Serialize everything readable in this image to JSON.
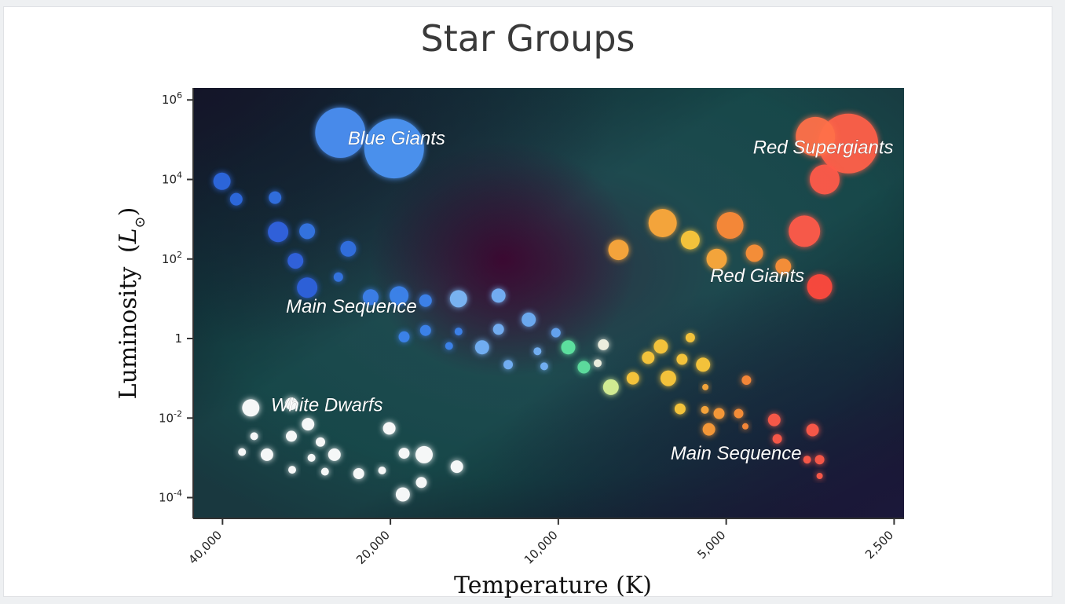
{
  "chart_data": {
    "type": "scatter",
    "title": "Star Groups",
    "xlabel": "Temperature (K)",
    "ylabel": "Luminosity",
    "ylabel_unit": "L",
    "x_scale": "log",
    "x_reversed": true,
    "y_scale": "log",
    "xlim": [
      45000,
      2400
    ],
    "ylim": [
      3e-05,
      2000000
    ],
    "x_ticks": [
      {
        "value": 40000,
        "label": "40,000"
      },
      {
        "value": 20000,
        "label": "20,000"
      },
      {
        "value": 10000,
        "label": "10,000"
      },
      {
        "value": 5000,
        "label": "5,000"
      },
      {
        "value": 2500,
        "label": "2,500"
      }
    ],
    "y_ticks": [
      {
        "value": 1000000,
        "base": "10",
        "exp": "6"
      },
      {
        "value": 10000,
        "base": "10",
        "exp": "4"
      },
      {
        "value": 100,
        "base": "10",
        "exp": "2"
      },
      {
        "value": 1,
        "base": "1",
        "exp": ""
      },
      {
        "value": 0.01,
        "base": "10",
        "exp": "-2"
      },
      {
        "value": 0.0001,
        "base": "10",
        "exp": "-4"
      }
    ],
    "grid": false,
    "annotations": [
      {
        "text": "Blue Giants",
        "x": 19500,
        "y": 100000
      },
      {
        "text": "Red Supergiants",
        "x": 3350,
        "y": 60000
      },
      {
        "text": "Red Giants",
        "x": 4400,
        "y": 35
      },
      {
        "text": "Main Sequence",
        "x": 23500,
        "y": 6
      },
      {
        "text": "White Dwarfs",
        "x": 26000,
        "y": 0.02
      },
      {
        "text": "Main Sequence",
        "x": 4800,
        "y": 0.0012
      }
    ],
    "points": [
      {
        "x": 19700,
        "y": 60000,
        "r": 38,
        "color": "#4d95f4"
      },
      {
        "x": 24600,
        "y": 150000,
        "r": 32,
        "color": "#4b8ff2"
      },
      {
        "x": 3020,
        "y": 80000,
        "r": 38,
        "color": "#ff6048"
      },
      {
        "x": 3460,
        "y": 120000,
        "r": 25,
        "color": "#ff7048"
      },
      {
        "x": 3330,
        "y": 10000,
        "r": 19,
        "color": "#ff5a48"
      },
      {
        "x": 40100,
        "y": 9000,
        "r": 11,
        "color": "#2f68e0"
      },
      {
        "x": 37800,
        "y": 3200,
        "r": 8,
        "color": "#2f6ae0"
      },
      {
        "x": 32200,
        "y": 3500,
        "r": 8,
        "color": "#3070e2"
      },
      {
        "x": 31800,
        "y": 480,
        "r": 13,
        "color": "#3064e0"
      },
      {
        "x": 28200,
        "y": 500,
        "r": 10,
        "color": "#3574e4"
      },
      {
        "x": 29600,
        "y": 90,
        "r": 10,
        "color": "#3064e0"
      },
      {
        "x": 28200,
        "y": 19,
        "r": 13,
        "color": "#2e62de"
      },
      {
        "x": 23800,
        "y": 180,
        "r": 10,
        "color": "#3270e2"
      },
      {
        "x": 24800,
        "y": 35,
        "r": 6,
        "color": "#3574e4"
      },
      {
        "x": 21700,
        "y": 11,
        "r": 10,
        "color": "#3d80ec"
      },
      {
        "x": 19300,
        "y": 12,
        "r": 12,
        "color": "#3d84ee"
      },
      {
        "x": 17300,
        "y": 9,
        "r": 8,
        "color": "#3d84ee"
      },
      {
        "x": 15100,
        "y": 10,
        "r": 11,
        "color": "#7cb8f8"
      },
      {
        "x": 12800,
        "y": 12,
        "r": 9,
        "color": "#74b2f8"
      },
      {
        "x": 11300,
        "y": 3,
        "r": 9,
        "color": "#6eaef6"
      },
      {
        "x": 10100,
        "y": 1.4,
        "r": 6,
        "color": "#66a6f4"
      },
      {
        "x": 18900,
        "y": 1.1,
        "r": 7,
        "color": "#3d84ee"
      },
      {
        "x": 17300,
        "y": 1.6,
        "r": 7,
        "color": "#3d84ee"
      },
      {
        "x": 15100,
        "y": 1.5,
        "r": 5,
        "color": "#3d84ee"
      },
      {
        "x": 15700,
        "y": 0.65,
        "r": 5,
        "color": "#3d84ee"
      },
      {
        "x": 13700,
        "y": 0.6,
        "r": 9,
        "color": "#74b2f8"
      },
      {
        "x": 12800,
        "y": 1.7,
        "r": 7,
        "color": "#74b2f8"
      },
      {
        "x": 12300,
        "y": 0.22,
        "r": 6,
        "color": "#74b2f8"
      },
      {
        "x": 10900,
        "y": 0.48,
        "r": 5,
        "color": "#74b2f8"
      },
      {
        "x": 10600,
        "y": 0.2,
        "r": 5,
        "color": "#74b2f8"
      },
      {
        "x": 9600,
        "y": 0.6,
        "r": 9,
        "color": "#5fe6a2"
      },
      {
        "x": 9000,
        "y": 0.19,
        "r": 8,
        "color": "#5ee0a0"
      },
      {
        "x": 8300,
        "y": 0.7,
        "r": 7,
        "color": "#f4f4e4"
      },
      {
        "x": 8500,
        "y": 0.24,
        "r": 5,
        "color": "#f4f4e4"
      },
      {
        "x": 8050,
        "y": 0.06,
        "r": 10,
        "color": "#d8f296"
      },
      {
        "x": 7350,
        "y": 0.1,
        "r": 8,
        "color": "#fcc83a"
      },
      {
        "x": 6900,
        "y": 0.33,
        "r": 8,
        "color": "#fcc83a"
      },
      {
        "x": 6550,
        "y": 0.63,
        "r": 9,
        "color": "#fcc83a"
      },
      {
        "x": 6350,
        "y": 0.1,
        "r": 10,
        "color": "#fcc83a"
      },
      {
        "x": 6000,
        "y": 0.3,
        "r": 7,
        "color": "#fcc83a"
      },
      {
        "x": 5800,
        "y": 1.05,
        "r": 6,
        "color": "#fcc83a"
      },
      {
        "x": 5500,
        "y": 0.22,
        "r": 9,
        "color": "#fcc83a"
      },
      {
        "x": 6050,
        "y": 0.017,
        "r": 7,
        "color": "#fcc83a"
      },
      {
        "x": 5450,
        "y": 0.06,
        "r": 4,
        "color": "#fca83a"
      },
      {
        "x": 5460,
        "y": 0.016,
        "r": 5,
        "color": "#fca83a"
      },
      {
        "x": 5370,
        "y": 0.0052,
        "r": 8,
        "color": "#fc9c38"
      },
      {
        "x": 5150,
        "y": 0.013,
        "r": 7,
        "color": "#fc9c38"
      },
      {
        "x": 4750,
        "y": 0.013,
        "r": 6,
        "color": "#fc9038"
      },
      {
        "x": 4600,
        "y": 0.09,
        "r": 6,
        "color": "#fc8a38"
      },
      {
        "x": 4620,
        "y": 0.0062,
        "r": 4,
        "color": "#fc8a38"
      },
      {
        "x": 4100,
        "y": 0.009,
        "r": 8,
        "color": "#ff5a48"
      },
      {
        "x": 4050,
        "y": 0.003,
        "r": 6,
        "color": "#ff5a48"
      },
      {
        "x": 3500,
        "y": 0.005,
        "r": 8,
        "color": "#ff5a48"
      },
      {
        "x": 3580,
        "y": 0.0009,
        "r": 5,
        "color": "#ff5a48"
      },
      {
        "x": 3400,
        "y": 0.0009,
        "r": 6,
        "color": "#ff5a48"
      },
      {
        "x": 3400,
        "y": 0.00035,
        "r": 4,
        "color": "#ff5a48"
      },
      {
        "x": 7800,
        "y": 170,
        "r": 13,
        "color": "#fca83a"
      },
      {
        "x": 6500,
        "y": 800,
        "r": 18,
        "color": "#fca83a"
      },
      {
        "x": 5800,
        "y": 300,
        "r": 12,
        "color": "#fcc83a"
      },
      {
        "x": 5200,
        "y": 100,
        "r": 13,
        "color": "#fca83a"
      },
      {
        "x": 4920,
        "y": 700,
        "r": 17,
        "color": "#fc8a38"
      },
      {
        "x": 4450,
        "y": 140,
        "r": 11,
        "color": "#fc9038"
      },
      {
        "x": 3950,
        "y": 65,
        "r": 10,
        "color": "#fc9038"
      },
      {
        "x": 3620,
        "y": 500,
        "r": 20,
        "color": "#ff5a48"
      },
      {
        "x": 3400,
        "y": 20,
        "r": 16,
        "color": "#ff4a3c"
      },
      {
        "x": 35600,
        "y": 0.018,
        "r": 11,
        "color": "#ffffff"
      },
      {
        "x": 30100,
        "y": 0.023,
        "r": 8,
        "color": "#ffffff"
      },
      {
        "x": 28100,
        "y": 0.007,
        "r": 8,
        "color": "#ffffff"
      },
      {
        "x": 35100,
        "y": 0.0035,
        "r": 5,
        "color": "#ffffff"
      },
      {
        "x": 36900,
        "y": 0.0014,
        "r": 5,
        "color": "#ffffff"
      },
      {
        "x": 33300,
        "y": 0.0012,
        "r": 8,
        "color": "#ffffff"
      },
      {
        "x": 30100,
        "y": 0.0035,
        "r": 7,
        "color": "#ffffff"
      },
      {
        "x": 30000,
        "y": 0.0005,
        "r": 5,
        "color": "#ffffff"
      },
      {
        "x": 26700,
        "y": 0.0025,
        "r": 6,
        "color": "#ffffff"
      },
      {
        "x": 27700,
        "y": 0.001,
        "r": 5,
        "color": "#ffffff"
      },
      {
        "x": 26200,
        "y": 0.00045,
        "r": 5,
        "color": "#ffffff"
      },
      {
        "x": 25200,
        "y": 0.0012,
        "r": 8,
        "color": "#ffffff"
      },
      {
        "x": 22800,
        "y": 0.0004,
        "r": 7,
        "color": "#ffffff"
      },
      {
        "x": 20100,
        "y": 0.0055,
        "r": 8,
        "color": "#ffffff"
      },
      {
        "x": 18900,
        "y": 0.0013,
        "r": 7,
        "color": "#ffffff"
      },
      {
        "x": 20700,
        "y": 0.00048,
        "r": 5,
        "color": "#ffffff"
      },
      {
        "x": 19000,
        "y": 0.00012,
        "r": 9,
        "color": "#ffffff"
      },
      {
        "x": 17600,
        "y": 0.00024,
        "r": 7,
        "color": "#ffffff"
      },
      {
        "x": 17400,
        "y": 0.0012,
        "r": 11,
        "color": "#ffffff"
      },
      {
        "x": 15200,
        "y": 0.0006,
        "r": 8,
        "color": "#ffffff"
      }
    ]
  }
}
